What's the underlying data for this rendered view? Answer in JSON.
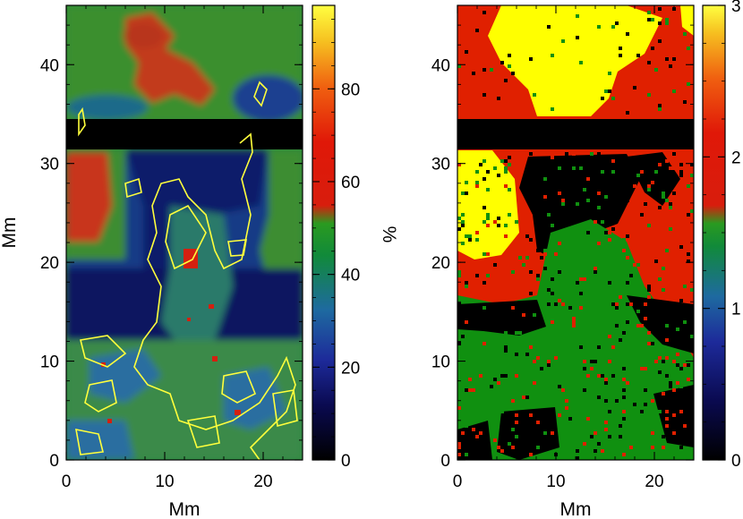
{
  "chart_data": [
    {
      "type": "heatmap",
      "title": "",
      "xlabel": "Mm",
      "ylabel": "Mm",
      "xlim": [
        0,
        24
      ],
      "ylim": [
        0,
        46
      ],
      "xticks": [
        "0",
        "10",
        "20"
      ],
      "yticks": [
        "0",
        "10",
        "20",
        "30",
        "40"
      ],
      "colorbar": {
        "label": "%",
        "range": [
          0,
          98
        ],
        "ticks": [
          "0",
          "20",
          "40",
          "60",
          "80"
        ]
      },
      "masked_band_y": [
        31.4,
        34.3
      ],
      "contour_color": "#ffff3c",
      "regions": [
        {
          "zone": "top-left",
          "value_pct": 65
        },
        {
          "zone": "top-band",
          "value_pct": 42
        },
        {
          "zone": "left-middle",
          "value_pct": 65
        },
        {
          "zone": "center-lane",
          "value_pct": 22
        },
        {
          "zone": "lower-band",
          "value_pct": 15
        },
        {
          "zone": "bottom",
          "value_pct": 35
        }
      ]
    },
    {
      "type": "heatmap",
      "title": "",
      "xlabel": "Mm",
      "ylabel": "",
      "xlim": [
        0,
        24
      ],
      "ylim": [
        0,
        46
      ],
      "xticks": [
        "0",
        "10",
        "20"
      ],
      "yticks": [
        "0",
        "10",
        "20",
        "30",
        "40"
      ],
      "colorbar": {
        "label": "",
        "range": [
          0,
          3
        ],
        "ticks": [
          "0",
          "1",
          "2",
          "3"
        ]
      },
      "masked_band_y": [
        31.4,
        34.3
      ],
      "classes": [
        {
          "value": 0,
          "color": "#000000"
        },
        {
          "value": 1,
          "color": "#109010"
        },
        {
          "value": 2,
          "color": "#e02000"
        },
        {
          "value": 3,
          "color": "#ffff00"
        }
      ]
    }
  ]
}
